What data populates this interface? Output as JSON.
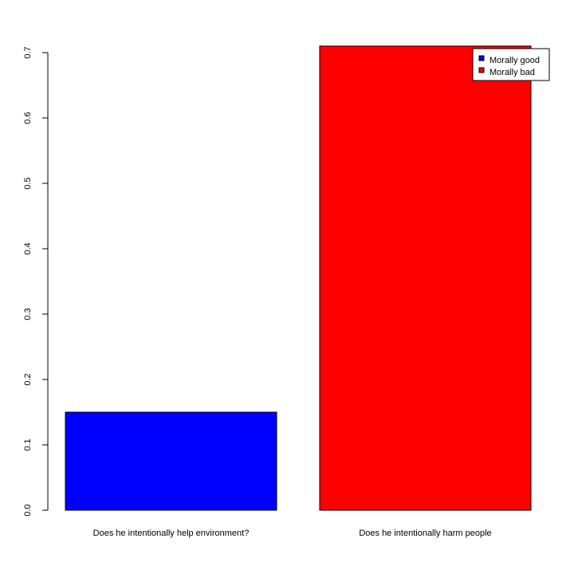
{
  "chart_data": {
    "type": "bar",
    "categories": [
      "Does he intentionally help environment?",
      "Does he intentionally harm people"
    ],
    "values": [
      0.15,
      0.71
    ],
    "bar_colors": [
      "#0000ff",
      "#ff0000"
    ],
    "yticks": [
      "0.0",
      "0.1",
      "0.2",
      "0.3",
      "0.4",
      "0.5",
      "0.6",
      "0.7"
    ],
    "ylim": [
      0,
      0.7
    ],
    "grid": false,
    "legend": {
      "position": "top-right",
      "entries": [
        {
          "label": "Morally good",
          "color": "#0000ff"
        },
        {
          "label": "Morally bad",
          "color": "#ff0000"
        }
      ]
    }
  }
}
